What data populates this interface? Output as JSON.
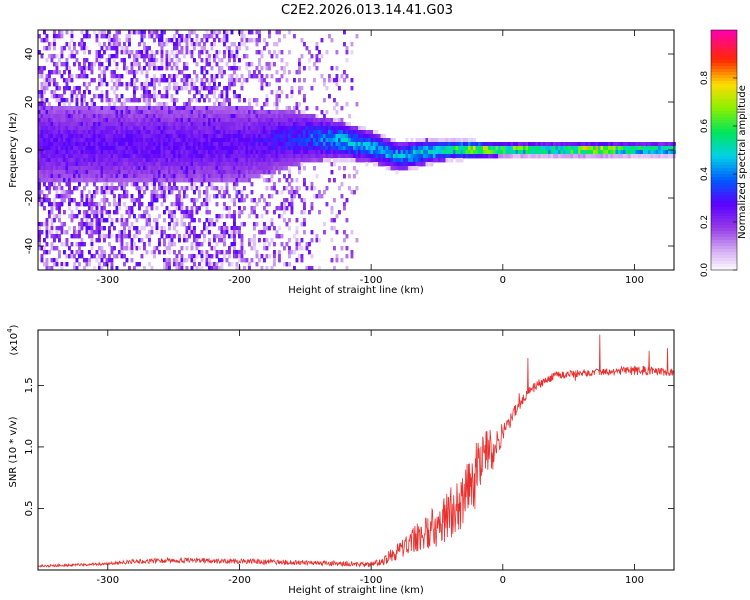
{
  "title": "C2E2.2026.013.14.41.G03",
  "chart_data": [
    {
      "type": "heatmap",
      "xlabel": "Height of straight line (km)",
      "ylabel": "Frequency (Hz)",
      "xlim": [
        -353,
        130
      ],
      "ylim": [
        -50,
        50
      ],
      "xticks": [
        -300,
        -200,
        -100,
        0,
        100
      ],
      "yticks": [
        -40,
        -20,
        0,
        20,
        40
      ],
      "colorbar": {
        "label": "Normalized spectral amplitude",
        "range": [
          0,
          1
        ],
        "ticks": [
          0.0,
          0.2,
          0.4,
          0.6,
          0.8
        ],
        "colormap": "white-purple-blue-cyan-green-yellow-red-magenta"
      },
      "ridge": [
        {
          "x": -200,
          "f": 3,
          "amp": 0.15,
          "bw": 25
        },
        {
          "x": -170,
          "f": 5,
          "amp": 0.2,
          "bw": 20
        },
        {
          "x": -150,
          "f": 6,
          "amp": 0.25,
          "bw": 16
        },
        {
          "x": -125,
          "f": 5,
          "amp": 0.35,
          "bw": 12
        },
        {
          "x": -100,
          "f": 2,
          "amp": 0.35,
          "bw": 10
        },
        {
          "x": -80,
          "f": -2,
          "amp": 0.35,
          "bw": 9
        },
        {
          "x": -60,
          "f": 0,
          "amp": 0.4,
          "bw": 8
        },
        {
          "x": -40,
          "f": 1,
          "amp": 0.45,
          "bw": 6
        },
        {
          "x": -20,
          "f": 1,
          "amp": 0.65,
          "bw": 5
        },
        {
          "x": 0,
          "f": 1,
          "amp": 0.6,
          "bw": 4
        },
        {
          "x": 40,
          "f": 1,
          "amp": 0.55,
          "bw": 4
        },
        {
          "x": 70,
          "f": 1,
          "amp": 0.7,
          "bw": 4
        },
        {
          "x": 100,
          "f": 1,
          "amp": 0.5,
          "bw": 4
        },
        {
          "x": 130,
          "f": 1,
          "amp": 0.45,
          "bw": 4
        }
      ]
    },
    {
      "type": "line",
      "xlabel": "Height of straight line (km)",
      "ylabel": "SNR (10 * v/v)",
      "yscale_label": "(x10",
      "yscale_exp": "4",
      "xlim": [
        -353,
        130
      ],
      "ylim": [
        0,
        1.95
      ],
      "xticks": [
        -300,
        -200,
        -100,
        0,
        100
      ],
      "yticks": [
        0.5,
        1.0,
        1.5
      ],
      "color": "#e8302e",
      "series": [
        {
          "name": "SNR",
          "x": [
            -353,
            -300,
            -280,
            -250,
            -200,
            -150,
            -120,
            -100,
            -90,
            -80,
            -70,
            -60,
            -50,
            -40,
            -30,
            -20,
            -15,
            -10,
            -5,
            0,
            10,
            20,
            30,
            40,
            60,
            80,
            100,
            110,
            120,
            130
          ],
          "y": [
            0.03,
            0.05,
            0.07,
            0.08,
            0.07,
            0.06,
            0.05,
            0.04,
            0.08,
            0.15,
            0.22,
            0.3,
            0.36,
            0.45,
            0.58,
            0.78,
            0.9,
            0.95,
            1.0,
            1.12,
            1.3,
            1.45,
            1.53,
            1.58,
            1.6,
            1.61,
            1.62,
            1.62,
            1.61,
            1.6
          ],
          "noise": [
            0.01,
            0.01,
            0.02,
            0.02,
            0.02,
            0.02,
            0.02,
            0.02,
            0.04,
            0.07,
            0.1,
            0.14,
            0.17,
            0.22,
            0.24,
            0.28,
            0.26,
            0.2,
            0.12,
            0.08,
            0.05,
            0.04,
            0.04,
            0.03,
            0.03,
            0.03,
            0.04,
            0.04,
            0.03,
            0.03
          ]
        }
      ]
    }
  ]
}
